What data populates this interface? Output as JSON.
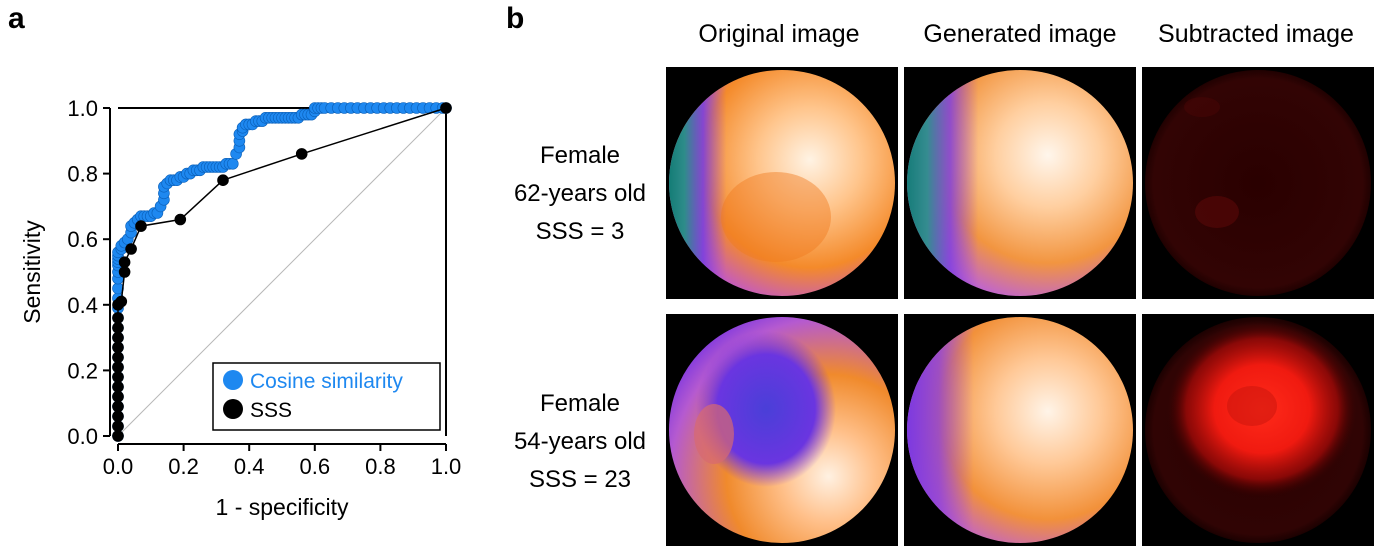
{
  "panel_a": {
    "letter": "a",
    "chart_data": {
      "type": "line",
      "title": "",
      "xlabel": "1 - specificity",
      "ylabel": "Sensitivity",
      "xlim": [
        0,
        1
      ],
      "ylim": [
        0,
        1
      ],
      "x_ticks": [
        "0.0",
        "0.2",
        "0.4",
        "0.6",
        "0.8",
        "1.0"
      ],
      "y_ticks": [
        "0.0",
        "0.2",
        "0.4",
        "0.6",
        "0.8",
        "1.0"
      ],
      "legend_position": "bottom-right",
      "grid": false,
      "reference_diagonal": true,
      "series": [
        {
          "name": "Cosine similarity",
          "color": "#1e88f0",
          "x": [
            0,
            0,
            0,
            0,
            0,
            0,
            0,
            0,
            0,
            0,
            0,
            0,
            0,
            0,
            0,
            0,
            0,
            0,
            0,
            0,
            0,
            0,
            0,
            0.01,
            0.01,
            0.02,
            0.03,
            0.04,
            0.04,
            0.05,
            0.06,
            0.07,
            0.08,
            0.09,
            0.1,
            0.11,
            0.12,
            0.13,
            0.14,
            0.14,
            0.14,
            0.15,
            0.16,
            0.17,
            0.18,
            0.19,
            0.2,
            0.21,
            0.22,
            0.23,
            0.24,
            0.25,
            0.26,
            0.27,
            0.28,
            0.29,
            0.3,
            0.31,
            0.32,
            0.33,
            0.34,
            0.35,
            0.36,
            0.37,
            0.37,
            0.37,
            0.38,
            0.38,
            0.39,
            0.4,
            0.41,
            0.42,
            0.43,
            0.44,
            0.45,
            0.46,
            0.47,
            0.48,
            0.49,
            0.5,
            0.51,
            0.52,
            0.53,
            0.54,
            0.55,
            0.56,
            0.57,
            0.58,
            0.59,
            0.6,
            0.6,
            0.61,
            0.62,
            0.63,
            0.65,
            0.67,
            0.69,
            0.71,
            0.73,
            0.75,
            0.77,
            0.79,
            0.81,
            0.83,
            0.85,
            0.87,
            0.89,
            0.91,
            0.93,
            0.95,
            0.97,
            0.99,
            1.0
          ],
          "y": [
            0,
            0.03,
            0.06,
            0.09,
            0.12,
            0.15,
            0.18,
            0.21,
            0.24,
            0.27,
            0.3,
            0.33,
            0.36,
            0.39,
            0.42,
            0.45,
            0.48,
            0.5,
            0.52,
            0.53,
            0.54,
            0.55,
            0.56,
            0.57,
            0.58,
            0.59,
            0.6,
            0.62,
            0.64,
            0.65,
            0.66,
            0.67,
            0.67,
            0.67,
            0.67,
            0.68,
            0.68,
            0.7,
            0.72,
            0.74,
            0.76,
            0.77,
            0.78,
            0.78,
            0.78,
            0.79,
            0.79,
            0.8,
            0.8,
            0.81,
            0.81,
            0.81,
            0.82,
            0.82,
            0.82,
            0.82,
            0.82,
            0.82,
            0.82,
            0.83,
            0.83,
            0.83,
            0.86,
            0.88,
            0.9,
            0.92,
            0.93,
            0.94,
            0.95,
            0.95,
            0.95,
            0.96,
            0.96,
            0.96,
            0.97,
            0.97,
            0.97,
            0.97,
            0.97,
            0.97,
            0.97,
            0.97,
            0.97,
            0.97,
            0.97,
            0.98,
            0.98,
            0.98,
            0.98,
            0.99,
            1.0,
            1.0,
            1.0,
            1.0,
            1.0,
            1.0,
            1.0,
            1.0,
            1.0,
            1.0,
            1.0,
            1.0,
            1.0,
            1.0,
            1.0,
            1.0,
            1.0,
            1.0,
            1.0,
            1.0,
            1.0,
            1.0,
            1.0
          ]
        },
        {
          "name": "SSS",
          "color": "#000000",
          "x": [
            0,
            0,
            0,
            0,
            0,
            0,
            0,
            0,
            0,
            0,
            0,
            0,
            0,
            0,
            0.01,
            0.02,
            0.02,
            0.04,
            0.07,
            0.19,
            0.32,
            0.56,
            1.0
          ],
          "y": [
            0,
            0.03,
            0.06,
            0.09,
            0.12,
            0.15,
            0.18,
            0.21,
            0.24,
            0.27,
            0.3,
            0.33,
            0.36,
            0.4,
            0.41,
            0.5,
            0.53,
            0.57,
            0.64,
            0.66,
            0.78,
            0.86,
            1.0
          ]
        }
      ]
    }
  },
  "panel_b": {
    "letter": "b",
    "column_headers": [
      "Original image",
      "Generated image",
      "Subtracted image"
    ],
    "rows": [
      {
        "line1": "Female",
        "line2": "62-years old",
        "line3": "SSS = 3"
      },
      {
        "line1": "Female",
        "line2": "54-years old",
        "line3": "SSS = 23"
      }
    ]
  }
}
